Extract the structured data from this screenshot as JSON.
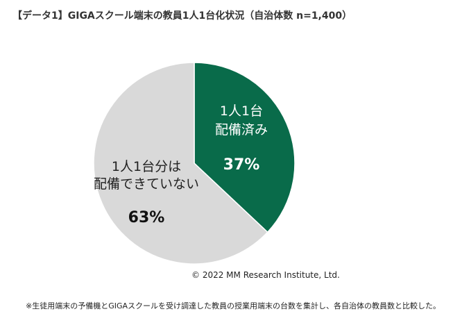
{
  "title": "【データ1】GIGAスクール端末の教員1人1台化状況（自治体数 n=1,400）",
  "copyright": "© 2022 MM Research Institute, Ltd.",
  "note": "※生徒用端末の予備機とGIGAスクールを受け調達した教員の授業用端末の台数を集計し、各自治体の教員数と比較した。",
  "chart_data": {
    "type": "pie",
    "title": "【データ1】GIGAスクール端末の教員1人1台化状況（自治体数 n=1,400）",
    "slices": [
      {
        "label_lines": [
          "1人1台",
          "配備済み"
        ],
        "value": 37,
        "value_label": "37%",
        "color": "#096b4a",
        "text_color": "#ffffff",
        "value_color": "#ffffff"
      },
      {
        "label_lines": [
          "1人1台分は",
          "配備できていない"
        ],
        "value": 63,
        "value_label": "63%",
        "color": "#d9d9d9",
        "text_color": "#222222",
        "value_color": "#111111"
      }
    ]
  }
}
